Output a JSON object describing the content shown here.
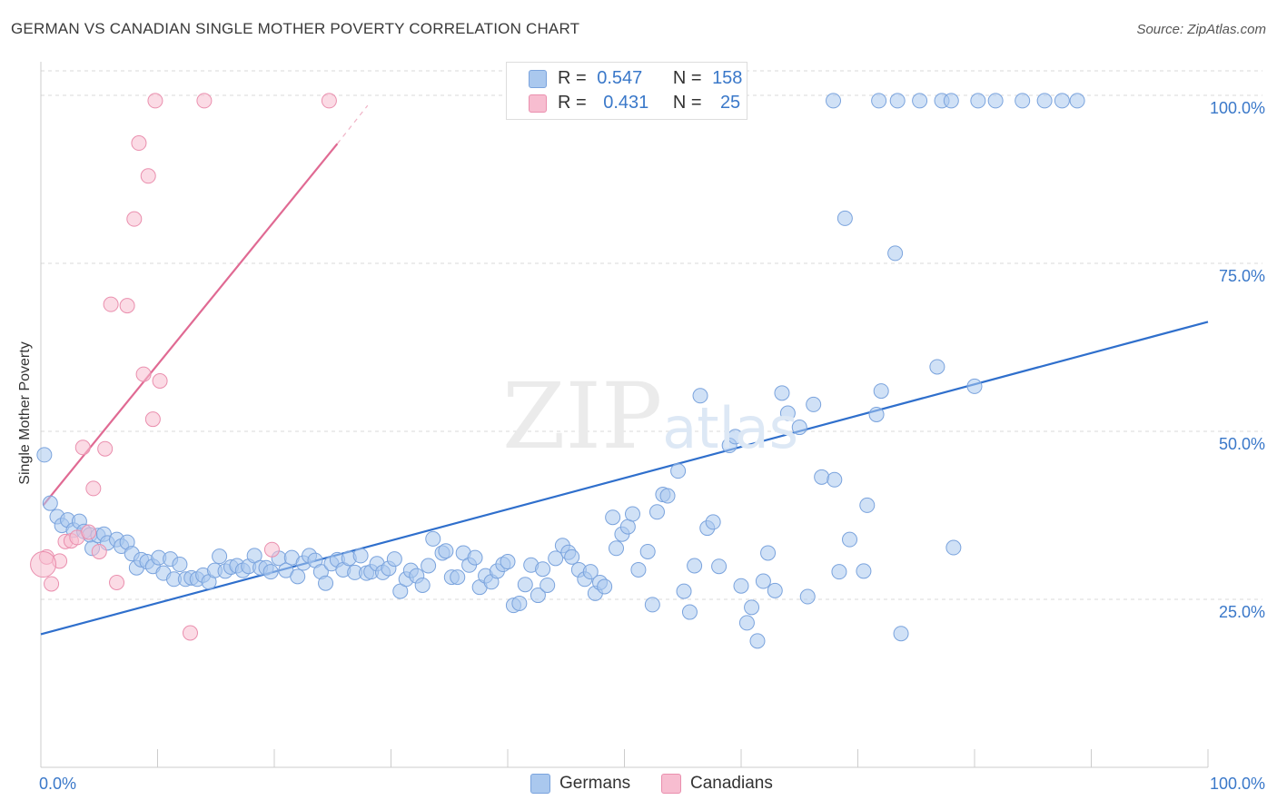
{
  "title": "GERMAN VS CANADIAN SINGLE MOTHER POVERTY CORRELATION CHART",
  "source": "Source: ZipAtlas.com",
  "watermark": {
    "zip": "ZIP",
    "atlas": "atlas"
  },
  "legend_top": {
    "r_label": "R =",
    "n_label": "N =",
    "rows": [
      {
        "r": "0.547",
        "n": "158"
      },
      {
        "r": "0.431",
        "n": "25"
      }
    ]
  },
  "colors": {
    "german_fill": "#aac8ee",
    "german_stroke": "#7aa3dd",
    "german_line": "#2f6fcc",
    "canadian_fill": "#f7bdd0",
    "canadian_stroke": "#ea8fae",
    "canadian_line": "#e06a93",
    "tick_label": "#3a78c9"
  },
  "chart_data": {
    "type": "scatter",
    "title": "GERMAN VS CANADIAN SINGLE MOTHER POVERTY CORRELATION CHART",
    "xlabel": "",
    "ylabel": "Single Mother Poverty",
    "xlim": [
      0,
      100
    ],
    "ylim": [
      0,
      105
    ],
    "x_tick_labels": [
      "0.0%",
      "100.0%"
    ],
    "y_ticks": [
      25,
      50,
      75,
      100
    ],
    "y_tick_labels": [
      "25.0%",
      "50.0%",
      "75.0%",
      "100.0%"
    ],
    "grid": true,
    "legend": [
      "Germans",
      "Canadians"
    ],
    "series": [
      {
        "name": "Germans",
        "r": 0.547,
        "n": 158,
        "trend": {
          "x": [
            0,
            100
          ],
          "y": [
            19.8,
            66.3
          ]
        },
        "points": [
          [
            0.3,
            46.5
          ],
          [
            0.8,
            39.3
          ],
          [
            1.4,
            37.3
          ],
          [
            1.8,
            36.0
          ],
          [
            2.3,
            36.8
          ],
          [
            2.8,
            35.3
          ],
          [
            3.3,
            36.6
          ],
          [
            3.7,
            35.1
          ],
          [
            4.2,
            34.6
          ],
          [
            4.4,
            32.6
          ],
          [
            4.9,
            34.5
          ],
          [
            5.4,
            34.7
          ],
          [
            5.7,
            33.4
          ],
          [
            6.5,
            33.9
          ],
          [
            6.9,
            32.9
          ],
          [
            7.4,
            33.5
          ],
          [
            7.8,
            31.8
          ],
          [
            8.2,
            29.7
          ],
          [
            8.6,
            30.9
          ],
          [
            9.1,
            30.6
          ],
          [
            9.6,
            29.9
          ],
          [
            10.1,
            31.2
          ],
          [
            10.5,
            28.9
          ],
          [
            11.1,
            31.0
          ],
          [
            11.4,
            28.0
          ],
          [
            11.9,
            30.2
          ],
          [
            12.4,
            28.0
          ],
          [
            12.9,
            28.2
          ],
          [
            13.4,
            28.0
          ],
          [
            13.9,
            28.6
          ],
          [
            14.4,
            27.6
          ],
          [
            14.9,
            29.3
          ],
          [
            15.3,
            31.4
          ],
          [
            15.8,
            29.2
          ],
          [
            16.3,
            29.8
          ],
          [
            16.8,
            30.0
          ],
          [
            17.3,
            29.3
          ],
          [
            17.8,
            29.9
          ],
          [
            18.3,
            31.5
          ],
          [
            18.8,
            29.7
          ],
          [
            19.3,
            29.7
          ],
          [
            19.7,
            29.1
          ],
          [
            20.4,
            31.1
          ],
          [
            21.0,
            29.3
          ],
          [
            21.5,
            31.2
          ],
          [
            22.0,
            28.4
          ],
          [
            22.5,
            30.4
          ],
          [
            23.0,
            31.5
          ],
          [
            23.5,
            30.8
          ],
          [
            24.0,
            29.1
          ],
          [
            24.4,
            27.4
          ],
          [
            24.9,
            30.3
          ],
          [
            25.4,
            30.9
          ],
          [
            25.9,
            29.4
          ],
          [
            26.4,
            31.1
          ],
          [
            26.9,
            29.0
          ],
          [
            27.4,
            31.5
          ],
          [
            27.9,
            28.9
          ],
          [
            28.3,
            29.1
          ],
          [
            28.8,
            30.3
          ],
          [
            29.3,
            29.0
          ],
          [
            29.8,
            29.6
          ],
          [
            30.3,
            31.0
          ],
          [
            30.8,
            26.2
          ],
          [
            31.3,
            28.0
          ],
          [
            31.7,
            29.3
          ],
          [
            32.2,
            28.5
          ],
          [
            32.7,
            27.1
          ],
          [
            33.2,
            30.0
          ],
          [
            33.6,
            34.0
          ],
          [
            34.4,
            31.9
          ],
          [
            34.7,
            32.2
          ],
          [
            35.2,
            28.3
          ],
          [
            35.7,
            28.3
          ],
          [
            36.2,
            31.9
          ],
          [
            36.7,
            30.1
          ],
          [
            37.2,
            31.2
          ],
          [
            37.6,
            26.8
          ],
          [
            38.1,
            28.5
          ],
          [
            38.6,
            27.6
          ],
          [
            39.1,
            29.2
          ],
          [
            39.6,
            30.2
          ],
          [
            40.0,
            30.6
          ],
          [
            40.5,
            24.1
          ],
          [
            41.0,
            24.4
          ],
          [
            41.5,
            27.2
          ],
          [
            42.0,
            30.1
          ],
          [
            42.6,
            25.6
          ],
          [
            43.0,
            29.5
          ],
          [
            43.4,
            27.1
          ],
          [
            44.1,
            31.1
          ],
          [
            44.7,
            33.0
          ],
          [
            45.2,
            32.0
          ],
          [
            45.5,
            31.3
          ],
          [
            46.1,
            29.4
          ],
          [
            46.6,
            28.0
          ],
          [
            47.1,
            29.1
          ],
          [
            47.5,
            25.9
          ],
          [
            47.9,
            27.5
          ],
          [
            48.3,
            26.9
          ],
          [
            49.0,
            37.2
          ],
          [
            49.3,
            32.6
          ],
          [
            49.8,
            34.7
          ],
          [
            50.3,
            35.8
          ],
          [
            50.7,
            37.7
          ],
          [
            51.2,
            29.4
          ],
          [
            52.0,
            32.1
          ],
          [
            52.4,
            24.2
          ],
          [
            52.8,
            38.0
          ],
          [
            53.3,
            40.6
          ],
          [
            53.7,
            40.4
          ],
          [
            54.6,
            44.1
          ],
          [
            55.1,
            26.2
          ],
          [
            55.6,
            23.1
          ],
          [
            56.0,
            30.0
          ],
          [
            56.5,
            55.3
          ],
          [
            57.1,
            35.6
          ],
          [
            57.6,
            36.5
          ],
          [
            58.1,
            29.9
          ],
          [
            59.0,
            47.9
          ],
          [
            59.5,
            49.2
          ],
          [
            60.0,
            27.0
          ],
          [
            60.5,
            21.5
          ],
          [
            60.9,
            23.8
          ],
          [
            61.4,
            18.8
          ],
          [
            61.9,
            27.7
          ],
          [
            62.3,
            31.9
          ],
          [
            62.9,
            26.3
          ],
          [
            63.5,
            55.7
          ],
          [
            64.0,
            52.7
          ],
          [
            65.0,
            50.6
          ],
          [
            65.7,
            25.4
          ],
          [
            66.2,
            54.0
          ],
          [
            66.9,
            43.2
          ],
          [
            68.0,
            42.8
          ],
          [
            68.4,
            29.1
          ],
          [
            68.9,
            81.7
          ],
          [
            69.3,
            33.9
          ],
          [
            70.5,
            29.2
          ],
          [
            70.8,
            39.0
          ],
          [
            71.6,
            52.5
          ],
          [
            72.0,
            56.0
          ],
          [
            73.2,
            76.5
          ],
          [
            73.7,
            19.9
          ],
          [
            76.8,
            59.6
          ],
          [
            78.2,
            32.7
          ],
          [
            80.0,
            56.7
          ],
          [
            67.9,
            99.2
          ],
          [
            71.8,
            99.2
          ],
          [
            73.4,
            99.2
          ],
          [
            75.3,
            99.2
          ],
          [
            77.2,
            99.2
          ],
          [
            78.0,
            99.2
          ],
          [
            80.3,
            99.2
          ],
          [
            81.8,
            99.2
          ],
          [
            84.1,
            99.2
          ],
          [
            86.0,
            99.2
          ],
          [
            88.8,
            99.2
          ],
          [
            87.5,
            99.2
          ]
        ]
      },
      {
        "name": "Canadians",
        "r": 0.431,
        "n": 25,
        "trend": {
          "x": [
            0.2,
            25.4,
            28.0
          ],
          "y": [
            39.0,
            92.8,
            98.5
          ]
        },
        "points": [
          [
            0.5,
            31.3
          ],
          [
            0.9,
            27.3
          ],
          [
            1.6,
            30.7
          ],
          [
            2.1,
            33.6
          ],
          [
            2.6,
            33.7
          ],
          [
            3.1,
            34.2
          ],
          [
            3.6,
            47.6
          ],
          [
            4.1,
            35.0
          ],
          [
            4.5,
            41.5
          ],
          [
            5.0,
            32.1
          ],
          [
            5.5,
            47.4
          ],
          [
            6.0,
            68.9
          ],
          [
            6.5,
            27.5
          ],
          [
            7.4,
            68.7
          ],
          [
            8.0,
            81.6
          ],
          [
            8.4,
            92.9
          ],
          [
            8.8,
            58.5
          ],
          [
            9.2,
            88.0
          ],
          [
            9.6,
            51.8
          ],
          [
            10.2,
            57.5
          ],
          [
            12.8,
            20.0
          ],
          [
            9.8,
            99.2
          ],
          [
            14.0,
            99.2
          ],
          [
            19.8,
            32.4
          ],
          [
            24.7,
            99.2
          ]
        ]
      }
    ]
  },
  "legend_bottom": {
    "items": [
      "Germans",
      "Canadians"
    ]
  }
}
